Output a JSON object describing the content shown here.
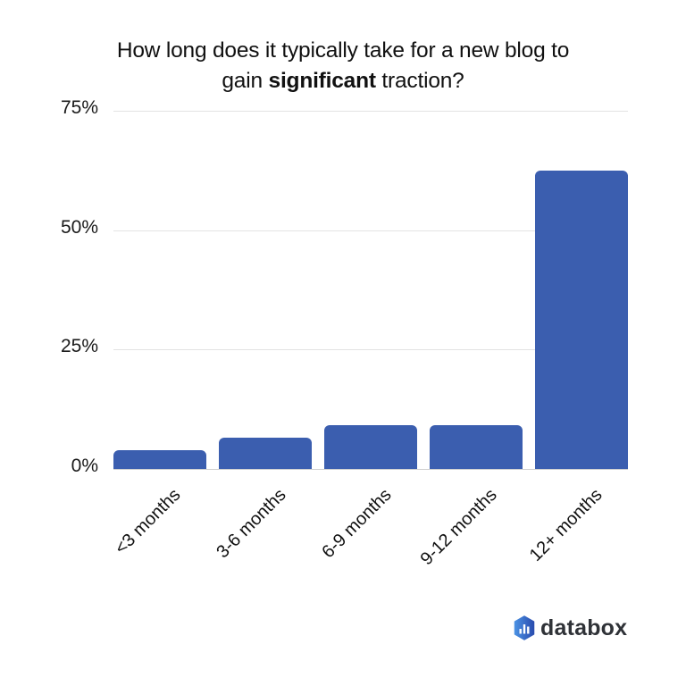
{
  "chart_data": {
    "type": "bar",
    "title": "How long does it typically take for a new blog to gain significant traction?",
    "title_parts": {
      "line1": "How long does it typically take for a new blog to",
      "line2_pre": "gain ",
      "line2_bold": "significant",
      "line2_post": " traction?"
    },
    "categories": [
      "<3 months",
      "3-6 months",
      "6-9 months",
      "9-12 months",
      "12+ months"
    ],
    "values": [
      4,
      6.5,
      9.2,
      9.2,
      62.5
    ],
    "unit": "%",
    "xlabel": "",
    "ylabel": "",
    "ylim": [
      0,
      75
    ],
    "yticks": [
      "0%",
      "25%",
      "50%",
      "75%"
    ],
    "ytick_values": [
      0,
      25,
      50,
      75
    ],
    "grid": true,
    "legend": null,
    "bar_color": "#3b5eaf",
    "gridline_color": "#e3e3e3"
  },
  "branding": {
    "logo_text": "databox",
    "logo_icon": "databox-hexagon-bars-icon",
    "logo_color_light": "#4a90e2",
    "logo_color_dark": "#2b4eb0"
  }
}
